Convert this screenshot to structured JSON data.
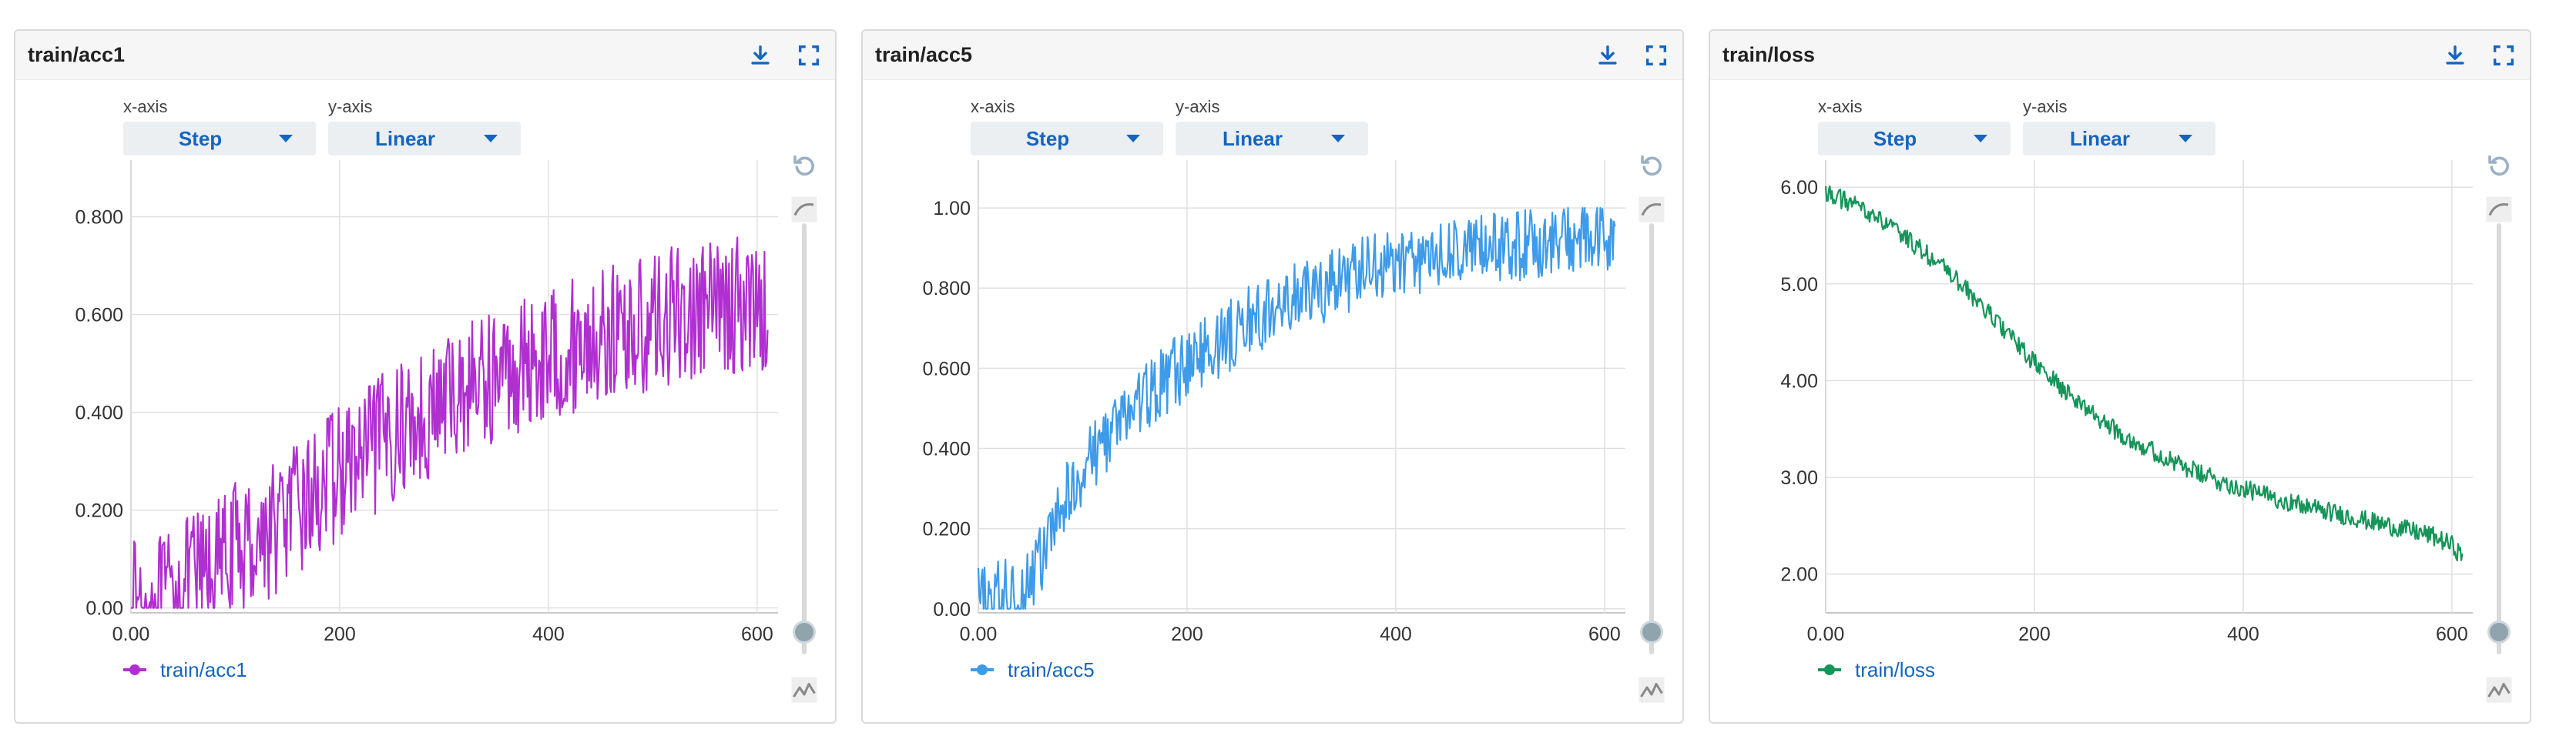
{
  "controls": {
    "xaxis_label": "x-axis",
    "yaxis_label": "y-axis",
    "xaxis_value": "Step",
    "yaxis_value": "Linear"
  },
  "colors": {
    "acc1": "#b02fd0",
    "acc5": "#3d9be9",
    "loss": "#16955a",
    "grid": "#e0e0e0",
    "select_text": "#1565c0"
  },
  "icons": [
    "download-icon",
    "fullscreen-icon",
    "reset-zoom-icon",
    "smoothing-icon",
    "slider-icon",
    "chart-type-icon"
  ],
  "charts": [
    {
      "title": "train/acc1",
      "legend": "train/acc1",
      "color": "#b02fd0",
      "chart_data": {
        "type": "line",
        "title": "train/acc1",
        "xlabel": "",
        "ylabel": "",
        "xlim": [
          0,
          620
        ],
        "ylim": [
          -0.01,
          0.9
        ],
        "xticks": [
          0,
          200,
          400,
          600
        ],
        "xtick_labels": [
          "0.00",
          "200",
          "400",
          "600"
        ],
        "yticks": [
          0,
          0.2,
          0.4,
          0.6,
          0.8
        ],
        "ytick_labels": [
          "0.00",
          "0.200",
          "0.400",
          "0.600",
          "0.800"
        ],
        "grid": true,
        "legend_position": "bottom-left",
        "series": [
          {
            "name": "train/acc1",
            "x": [
              0,
              20,
              40,
              60,
              80,
              100,
              120,
              140,
              160,
              180,
              200,
              220,
              240,
              260,
              280,
              300,
              320,
              340,
              360,
              380,
              400,
              420,
              440,
              460,
              480,
              500,
              520,
              540,
              560,
              580,
              600,
              610
            ],
            "y": [
              0.0,
              0.0,
              0.02,
              0.06,
              0.08,
              0.12,
              0.14,
              0.17,
              0.2,
              0.24,
              0.28,
              0.3,
              0.34,
              0.37,
              0.39,
              0.42,
              0.45,
              0.47,
              0.48,
              0.5,
              0.52,
              0.53,
              0.55,
              0.56,
              0.57,
              0.58,
              0.6,
              0.6,
              0.61,
              0.62,
              0.62,
              0.63
            ]
          }
        ]
      }
    },
    {
      "title": "train/acc5",
      "legend": "train/acc5",
      "color": "#3d9be9",
      "chart_data": {
        "type": "line",
        "title": "train/acc5",
        "xlabel": "",
        "ylabel": "",
        "xlim": [
          0,
          620
        ],
        "ylim": [
          -0.01,
          1.1
        ],
        "xticks": [
          0,
          200,
          400,
          600
        ],
        "xtick_labels": [
          "0.00",
          "200",
          "400",
          "600"
        ],
        "yticks": [
          0,
          0.2,
          0.4,
          0.6,
          0.8,
          1.0
        ],
        "ytick_labels": [
          "0.00",
          "0.200",
          "0.400",
          "0.600",
          "0.800",
          "1.00"
        ],
        "grid": true,
        "legend_position": "bottom-left",
        "series": [
          {
            "name": "train/acc5",
            "x": [
              0,
              20,
              40,
              60,
              80,
              100,
              120,
              140,
              160,
              180,
              200,
              220,
              240,
              260,
              280,
              300,
              320,
              340,
              360,
              380,
              400,
              420,
              440,
              460,
              480,
              500,
              520,
              540,
              560,
              580,
              600,
              610
            ],
            "y": [
              0.02,
              0.03,
              0.04,
              0.12,
              0.25,
              0.35,
              0.42,
              0.48,
              0.53,
              0.57,
              0.61,
              0.65,
              0.68,
              0.72,
              0.74,
              0.77,
              0.79,
              0.81,
              0.83,
              0.85,
              0.86,
              0.87,
              0.88,
              0.89,
              0.9,
              0.9,
              0.91,
              0.91,
              0.92,
              0.92,
              0.92,
              0.93
            ]
          }
        ]
      }
    },
    {
      "title": "train/loss",
      "legend": "train/loss",
      "color": "#16955a",
      "chart_data": {
        "type": "line",
        "title": "train/loss",
        "xlabel": "",
        "ylabel": "",
        "xlim": [
          0,
          620
        ],
        "ylim": [
          1.6,
          6.2
        ],
        "xticks": [
          0,
          200,
          400,
          600
        ],
        "xtick_labels": [
          "0.00",
          "200",
          "400",
          "600"
        ],
        "yticks": [
          2,
          3,
          4,
          5,
          6
        ],
        "ytick_labels": [
          "2.00",
          "3.00",
          "4.00",
          "5.00",
          "6.00"
        ],
        "grid": true,
        "legend_position": "bottom-left",
        "series": [
          {
            "name": "train/loss",
            "x": [
              0,
              20,
              40,
              60,
              80,
              100,
              120,
              140,
              160,
              180,
              200,
              220,
              240,
              260,
              280,
              300,
              320,
              340,
              360,
              380,
              400,
              420,
              440,
              460,
              480,
              500,
              520,
              540,
              560,
              580,
              600,
              610
            ],
            "y": [
              5.95,
              5.85,
              5.75,
              5.6,
              5.45,
              5.28,
              5.1,
              4.88,
              4.65,
              4.42,
              4.18,
              3.98,
              3.8,
              3.62,
              3.47,
              3.35,
              3.23,
              3.12,
              3.03,
              2.95,
              2.88,
              2.82,
              2.76,
              2.7,
              2.65,
              2.6,
              2.55,
              2.5,
              2.45,
              2.4,
              2.3,
              2.18
            ]
          }
        ]
      }
    }
  ]
}
